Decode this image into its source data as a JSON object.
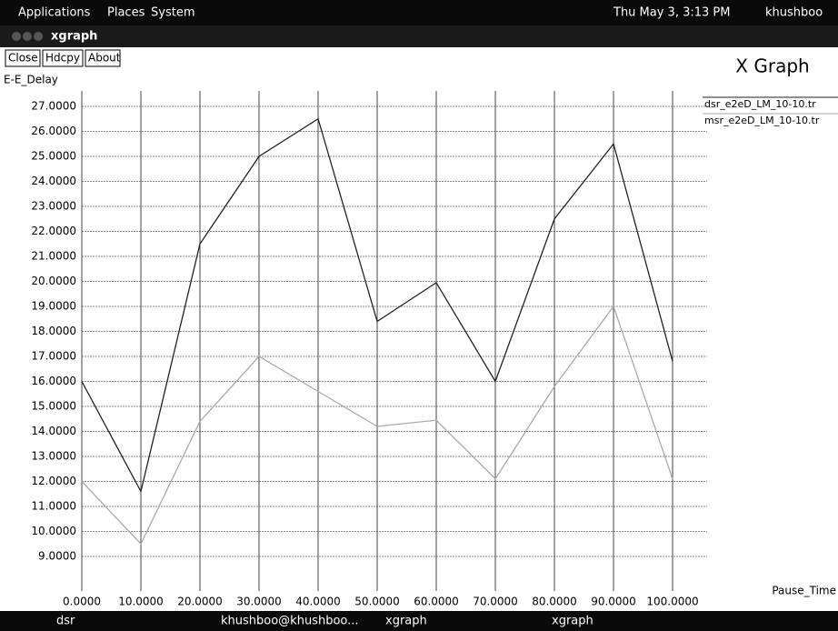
{
  "top_panel": {
    "menus": [
      "Applications",
      "Places",
      "System"
    ],
    "clock": "Thu May 3, 3:13 PM",
    "user": "khushboo"
  },
  "window": {
    "title": "xgraph",
    "buttons": [
      "Close",
      "Hdcpy",
      "About"
    ]
  },
  "chart_data": {
    "type": "line",
    "title": "X Graph",
    "y_label": "E-E_Delay",
    "x_label": "Pause_Time",
    "x": [
      0,
      10,
      20,
      30,
      40,
      50,
      60,
      70,
      80,
      90,
      100
    ],
    "series": [
      {
        "name": "dsr_e2eD_LM_10-10.tr",
        "color": "#222222",
        "values": [
          16.0,
          11.6,
          21.5,
          25.0,
          26.5,
          18.4,
          19.95,
          16.0,
          22.5,
          25.5,
          16.8
        ]
      },
      {
        "name": "msr_e2eD_LM_10-10.tr",
        "color": "#aaaaaa",
        "values": [
          12.0,
          9.5,
          14.4,
          17.0,
          15.6,
          14.2,
          14.45,
          12.1,
          15.8,
          19.0,
          12.1
        ]
      }
    ],
    "xlim": [
      0,
      100
    ],
    "ylim": [
      9,
      27
    ],
    "xticks": [
      {
        "value": 0,
        "label": "0.0000"
      },
      {
        "value": 10,
        "label": "10.0000"
      },
      {
        "value": 20,
        "label": "20.0000"
      },
      {
        "value": 30,
        "label": "30.0000"
      },
      {
        "value": 40,
        "label": "40.0000"
      },
      {
        "value": 50,
        "label": "50.0000"
      },
      {
        "value": 60,
        "label": "60.0000"
      },
      {
        "value": 70,
        "label": "70.0000"
      },
      {
        "value": 80,
        "label": "80.0000"
      },
      {
        "value": 90,
        "label": "90.0000"
      },
      {
        "value": 100,
        "label": "100.0000"
      }
    ],
    "yticks": [
      {
        "value": 9,
        "label": "9.0000"
      },
      {
        "value": 10,
        "label": "10.0000"
      },
      {
        "value": 11,
        "label": "11.0000"
      },
      {
        "value": 12,
        "label": "12.0000"
      },
      {
        "value": 13,
        "label": "13.0000"
      },
      {
        "value": 14,
        "label": "14.0000"
      },
      {
        "value": 15,
        "label": "15.0000"
      },
      {
        "value": 16,
        "label": "16.0000"
      },
      {
        "value": 17,
        "label": "17.0000"
      },
      {
        "value": 18,
        "label": "18.0000"
      },
      {
        "value": 19,
        "label": "19.0000"
      },
      {
        "value": 20,
        "label": "20.0000"
      },
      {
        "value": 21,
        "label": "21.0000"
      },
      {
        "value": 22,
        "label": "22.0000"
      },
      {
        "value": 23,
        "label": "23.0000"
      },
      {
        "value": 24,
        "label": "24.0000"
      },
      {
        "value": 25,
        "label": "25.0000"
      },
      {
        "value": 26,
        "label": "26.0000"
      },
      {
        "value": 27,
        "label": "27.0000"
      }
    ],
    "grid": true
  },
  "taskbar": {
    "items": [
      "dsr",
      "khushboo@khushboo...",
      "xgraph",
      "xgraph"
    ]
  }
}
